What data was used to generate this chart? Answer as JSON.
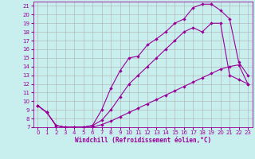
{
  "xlabel": "Windchill (Refroidissement éolien,°C)",
  "bg_color": "#c8eeee",
  "grid_color": "#b0b0b0",
  "line_color": "#990099",
  "xlim": [
    -0.5,
    23.5
  ],
  "ylim": [
    7,
    21.5
  ],
  "xticks": [
    0,
    1,
    2,
    3,
    4,
    5,
    6,
    7,
    8,
    9,
    10,
    11,
    12,
    13,
    14,
    15,
    16,
    17,
    18,
    19,
    20,
    21,
    22,
    23
  ],
  "yticks": [
    7,
    8,
    9,
    10,
    11,
    12,
    13,
    14,
    15,
    16,
    17,
    18,
    19,
    20,
    21
  ],
  "line1_x": [
    0,
    1,
    2,
    3,
    4,
    5,
    6,
    7,
    8,
    9,
    10,
    11,
    12,
    13,
    14,
    15,
    16,
    17,
    18,
    19,
    20,
    21,
    22,
    23
  ],
  "line1_y": [
    9.5,
    8.7,
    7.2,
    7.0,
    7.0,
    7.0,
    7.0,
    7.3,
    7.7,
    8.2,
    8.7,
    9.2,
    9.7,
    10.2,
    10.7,
    11.2,
    11.7,
    12.2,
    12.7,
    13.2,
    13.7,
    14.0,
    14.2,
    12.0
  ],
  "line2_x": [
    0,
    1,
    2,
    3,
    4,
    5,
    6,
    7,
    8,
    9,
    10,
    11,
    12,
    13,
    14,
    15,
    16,
    17,
    18,
    19,
    20,
    21,
    22,
    23
  ],
  "line2_y": [
    9.5,
    8.7,
    7.2,
    7.0,
    7.0,
    7.0,
    7.2,
    7.8,
    9.0,
    10.5,
    12.0,
    13.0,
    14.0,
    15.0,
    16.0,
    17.0,
    18.0,
    18.5,
    18.0,
    19.0,
    19.0,
    13.0,
    12.5,
    12.0
  ],
  "line3_x": [
    0,
    1,
    2,
    3,
    4,
    5,
    6,
    7,
    8,
    9,
    10,
    11,
    12,
    13,
    14,
    15,
    16,
    17,
    18,
    19,
    20,
    21,
    22,
    23
  ],
  "line3_y": [
    9.5,
    8.7,
    7.2,
    7.0,
    7.0,
    7.0,
    7.2,
    9.0,
    11.5,
    13.5,
    15.0,
    15.2,
    16.5,
    17.2,
    18.0,
    19.0,
    19.5,
    20.8,
    21.2,
    21.2,
    20.5,
    19.5,
    14.5,
    13.0
  ]
}
